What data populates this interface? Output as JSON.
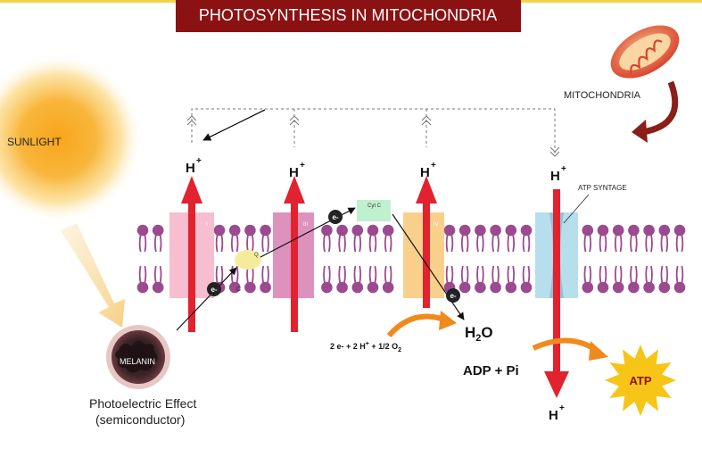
{
  "title": "PHOTOSYNTHESIS IN MITOCHONDRIA",
  "labels": {
    "sunlight": "SUNLIGHT",
    "mitochondria": "MITOCHONDRIA",
    "melanin": "MELANIN",
    "photoelectric_line1": "Photoelectric Effect",
    "photoelectric_line2": "(semiconductor)",
    "atp_syntage": "ATP SYNTAGE",
    "adp_pi": "ADP + Pi",
    "atp": "ATP"
  },
  "complexes": {
    "c1": "I",
    "c3": "III",
    "c4": "IV",
    "q": "Q",
    "c": "C",
    "cytc": "Cyt C"
  },
  "ions": {
    "h": "H",
    "plus": "+",
    "electron": "e-"
  },
  "products": {
    "water_h": "H",
    "water_sub": "2",
    "water_o": "O",
    "eq_prefix": "2 e- + 2 H",
    "eq_plus": "+",
    "eq_mid": " + 1/2 O",
    "eq_sub": "2"
  },
  "colors": {
    "title_bg": "#8b1212",
    "top_border": "#f3d24a",
    "lipid": "#9b4a8f",
    "proton_arrow": "#e2222e",
    "sun_core": "#f7a51d",
    "complex_pink": "#f5b3c6",
    "complex_magenta": "#d77fb3",
    "complex_orange": "#f7c878",
    "atp_synthase": "#a9d8ea",
    "cytc_box": "#bff0cf",
    "q_ellipse": "#f4ec9a",
    "atp_star": "#f7c418",
    "orange_arrow": "#f08a1c"
  }
}
